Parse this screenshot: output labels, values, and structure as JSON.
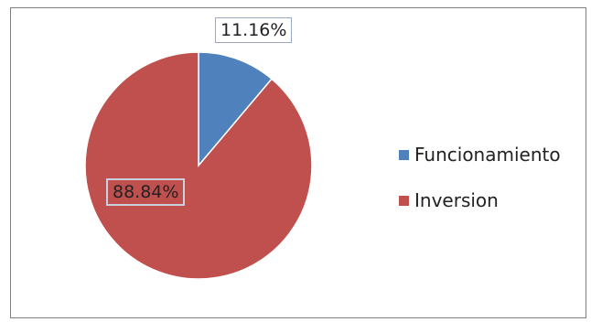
{
  "chart_data": {
    "type": "pie",
    "categories": [
      "Funcionamiento",
      "Inversion"
    ],
    "values": [
      11.16,
      88.84
    ],
    "data_labels": [
      "11.16%",
      "88.84%"
    ],
    "colors": [
      "#4f81bd",
      "#c0504d"
    ],
    "legend_position": "right"
  }
}
